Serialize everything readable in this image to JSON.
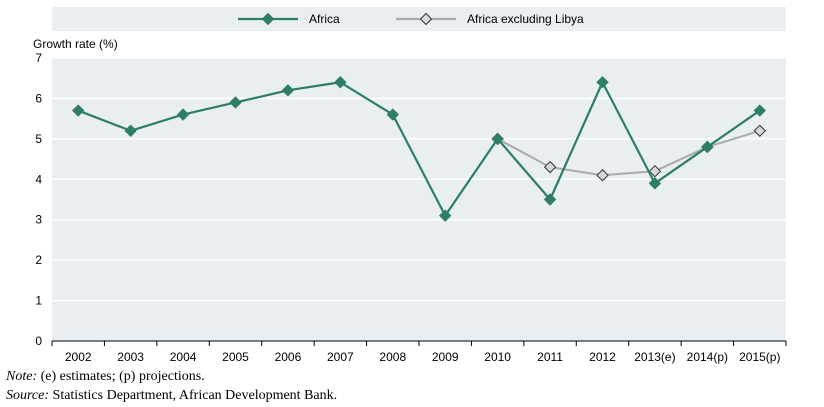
{
  "chart_data": {
    "type": "line",
    "ylabel": "Growth rate (%)",
    "ylim": [
      0,
      7
    ],
    "yticks": [
      0,
      1,
      2,
      3,
      4,
      5,
      6,
      7
    ],
    "categories": [
      "2002",
      "2003",
      "2004",
      "2005",
      "2006",
      "2007",
      "2008",
      "2009",
      "2010",
      "2011",
      "2012",
      "2013(e)",
      "2014(p)",
      "2015(p)"
    ],
    "series": [
      {
        "name": "Africa",
        "color": "#2e7d66",
        "marker": "diamond",
        "values": [
          5.7,
          5.2,
          5.6,
          5.9,
          6.2,
          6.4,
          5.6,
          3.1,
          5.0,
          3.5,
          6.4,
          3.9,
          4.8,
          5.7
        ]
      },
      {
        "name": "Africa excluding Libya",
        "color": "#aaaaaa",
        "marker": "diamond-light",
        "values": [
          null,
          null,
          null,
          null,
          null,
          null,
          null,
          null,
          5.0,
          4.3,
          4.1,
          4.2,
          4.8,
          5.2
        ]
      }
    ],
    "grid": "horizontal",
    "legend_position": "top"
  },
  "notes": {
    "note_prefix": "Note:",
    "note_text": " (e) estimates; (p) projections.",
    "source_prefix": "Source:",
    "source_text": " Statistics Department, African Development Bank."
  },
  "colors": {
    "plot_background": "#e9eef3",
    "legend_background": "#e9eef3",
    "gridline": "#ffffff"
  }
}
